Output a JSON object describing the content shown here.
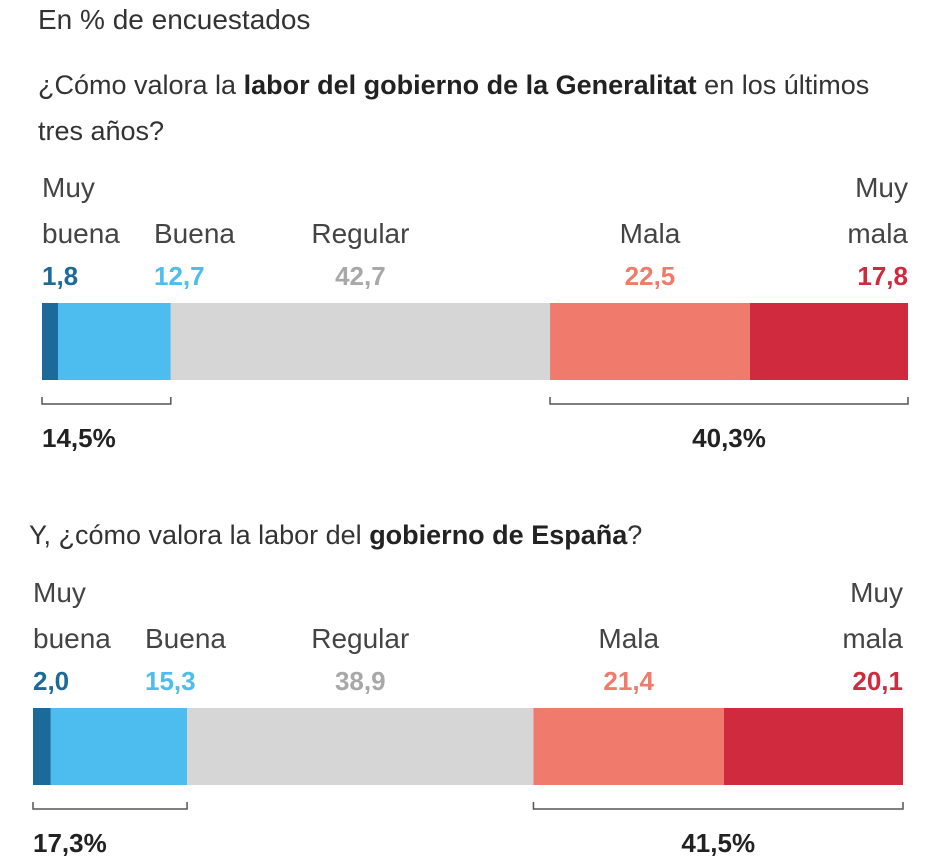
{
  "subtitle": "En % de encuestados",
  "chart_data": [
    {
      "type": "stacked-bar",
      "title_parts": [
        {
          "text": "¿Cómo valora la ",
          "bold": false
        },
        {
          "text": "labor del gobierno de la Generalitat",
          "bold": true
        },
        {
          "text": " en los últimos tres años?",
          "bold": false
        }
      ],
      "series": [
        {
          "name": "Muy buena",
          "color": "#1b6a99",
          "label_color": "#1b6a99",
          "values": [
            1.8
          ],
          "value_labels": [
            "1,8"
          ]
        },
        {
          "name": "Buena",
          "color": "#4cbdee",
          "label_color": "#4cbdee",
          "values": [
            12.7
          ],
          "value_labels": [
            "12,7"
          ]
        },
        {
          "name": "Regular",
          "color": "#d6d6d6",
          "label_color": "#a8a8a8",
          "values": [
            42.7
          ],
          "value_labels": [
            "42,7"
          ]
        },
        {
          "name": "Mala",
          "color": "#f07a6c",
          "label_color": "#f07a6c",
          "values": [
            22.5
          ],
          "value_labels": [
            "22,5"
          ]
        },
        {
          "name": "Muy mala",
          "color": "#cf2a3d",
          "label_color": "#cf2a3d",
          "values": [
            17.8
          ],
          "value_labels": [
            "17,8"
          ]
        }
      ],
      "totals": [
        {
          "value": 14.5,
          "label": "14,5%"
        },
        {
          "value": 40.3,
          "label": "40,3%"
        }
      ]
    },
    {
      "type": "stacked-bar",
      "title_parts": [
        {
          "text": "Y, ¿cómo valora la labor del ",
          "bold": false
        },
        {
          "text": "gobierno de España",
          "bold": true
        },
        {
          "text": "?",
          "bold": false
        }
      ],
      "series": [
        {
          "name": "Muy buena",
          "color": "#1b6a99",
          "label_color": "#1b6a99",
          "values": [
            2.0
          ],
          "value_labels": [
            "2,0"
          ]
        },
        {
          "name": "Buena",
          "color": "#4cbdee",
          "label_color": "#4cbdee",
          "values": [
            15.3
          ],
          "value_labels": [
            "15,3"
          ]
        },
        {
          "name": "Regular",
          "color": "#d6d6d6",
          "label_color": "#a8a8a8",
          "values": [
            38.9
          ],
          "value_labels": [
            "38,9"
          ]
        },
        {
          "name": "Mala",
          "color": "#f07a6c",
          "label_color": "#f07a6c",
          "values": [
            21.4
          ],
          "value_labels": [
            "21,4"
          ]
        },
        {
          "name": "Muy mala",
          "color": "#cf2a3d",
          "label_color": "#cf2a3d",
          "values": [
            20.1
          ],
          "value_labels": [
            "20,1"
          ]
        }
      ],
      "totals": [
        {
          "value": 17.3,
          "label": "17,3%"
        },
        {
          "value": 41.5,
          "label": "41,5%"
        }
      ]
    }
  ]
}
